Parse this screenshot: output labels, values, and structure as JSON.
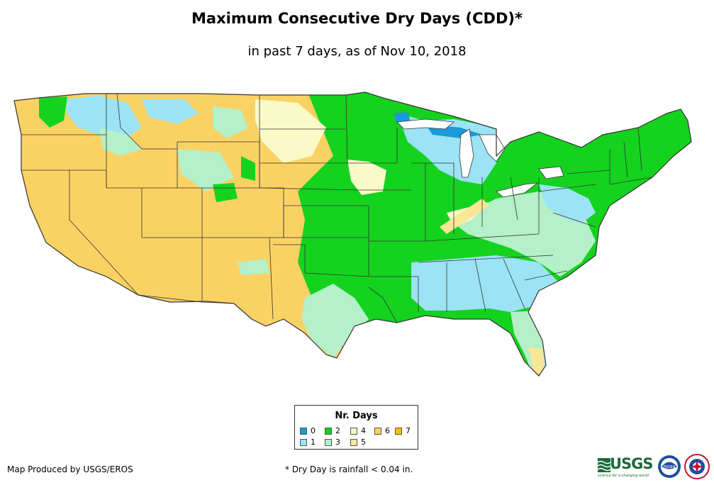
{
  "header": {
    "title": "Maximum Consecutive Dry Days (CDD)*",
    "subtitle": "in past 7 days, as of Nov 10, 2018"
  },
  "legend": {
    "title": "Nr. Days",
    "items": [
      {
        "label": "0",
        "color": "#1a9ad6"
      },
      {
        "label": "1",
        "color": "#9be3f5"
      },
      {
        "label": "2",
        "color": "#14d21e"
      },
      {
        "label": "3",
        "color": "#b4f0c8"
      },
      {
        "label": "4",
        "color": "#fafac8"
      },
      {
        "label": "5",
        "color": "#fae696"
      },
      {
        "label": "6",
        "color": "#fad264"
      },
      {
        "label": "7",
        "color": "#f5c200"
      }
    ]
  },
  "footer": {
    "credit": "Map Produced by USGS/EROS",
    "footnote": "* Dry Day is rainfall < 0.04 in."
  },
  "logos": {
    "usgs_text": "USGS",
    "usgs_tagline": "science for a changing world",
    "noaa_text": "noaa"
  },
  "icons": [
    "usgs-logo",
    "noaa-logo",
    "nws-logo"
  ],
  "colors": {
    "state_border": "#333333",
    "background": "#ffffff",
    "text": "#000000"
  }
}
